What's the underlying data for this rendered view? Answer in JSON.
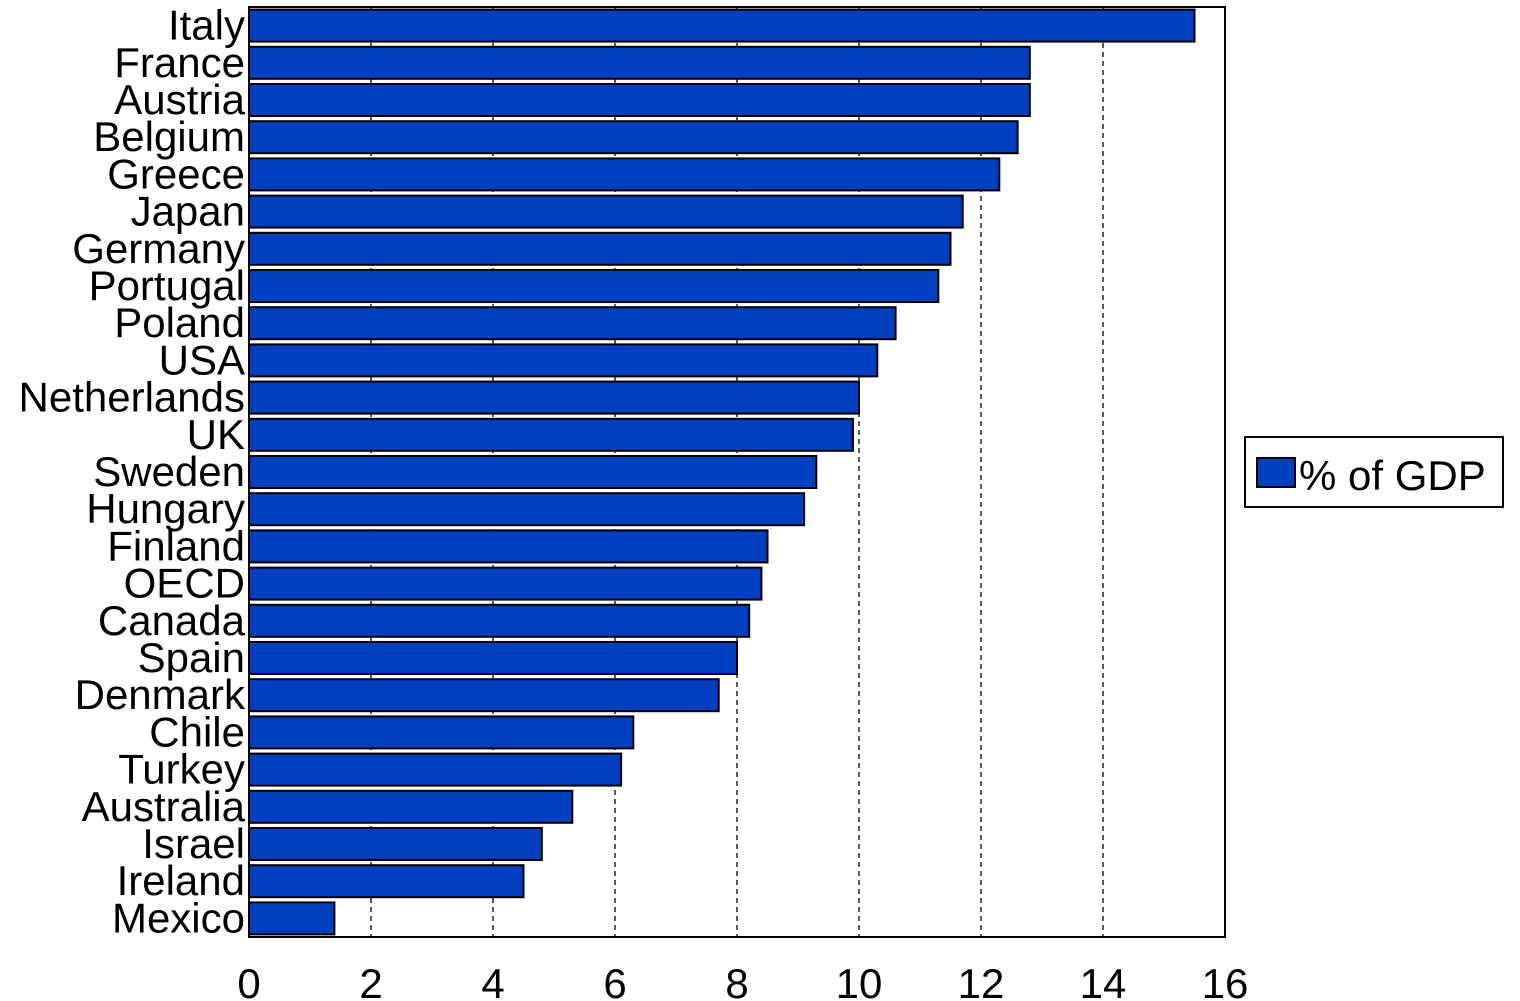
{
  "chart_data": {
    "type": "bar",
    "orientation": "horizontal",
    "categories": [
      "Italy",
      "France",
      "Austria",
      "Belgium",
      "Greece",
      "Japan",
      "Germany",
      "Portugal",
      "Poland",
      "USA",
      "Netherlands",
      "UK",
      "Sweden",
      "Hungary",
      "Finland",
      "OECD",
      "Canada",
      "Spain",
      "Denmark",
      "Chile",
      "Turkey",
      "Australia",
      "Israel",
      "Ireland",
      "Mexico"
    ],
    "series": [
      {
        "name": "% of GDP",
        "values": [
          15.5,
          12.8,
          12.8,
          12.6,
          12.3,
          11.7,
          11.5,
          11.3,
          10.6,
          10.3,
          10.0,
          9.9,
          9.3,
          9.1,
          8.5,
          8.4,
          8.2,
          8.0,
          7.7,
          6.3,
          6.1,
          5.3,
          4.8,
          4.5,
          1.4
        ],
        "color": "#0040c0"
      }
    ],
    "xlim": [
      0,
      16
    ],
    "xticks": [
      "0",
      "2",
      "4",
      "6",
      "8",
      "10",
      "12",
      "14",
      "16"
    ],
    "grid": "vertical dashed",
    "legend": "right",
    "title": "",
    "xlabel": "",
    "ylabel": ""
  }
}
